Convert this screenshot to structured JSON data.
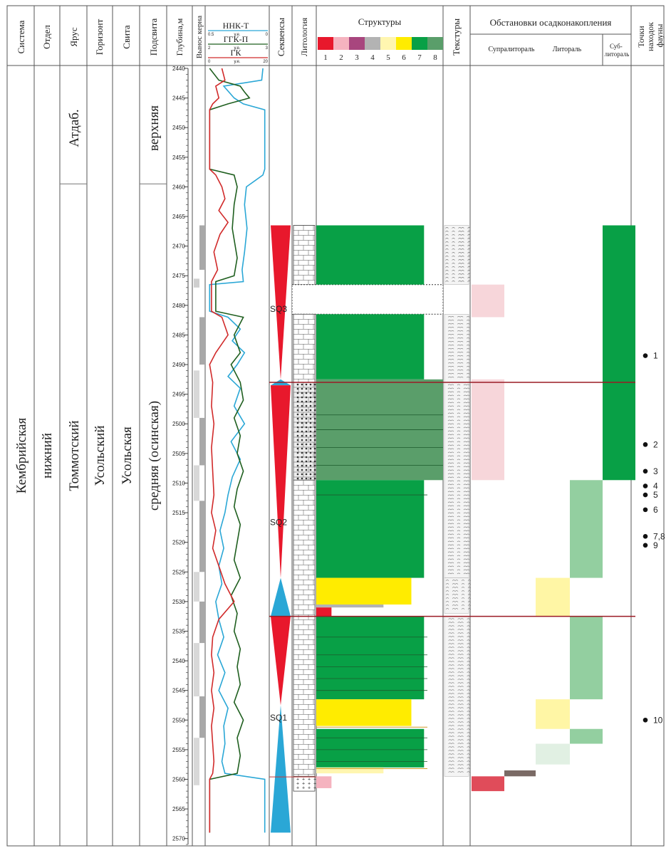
{
  "headers": {
    "system": "Система",
    "division": "Отдел",
    "stage": "Ярус",
    "horizon": "Горизонт",
    "formation": "Свита",
    "subformation": "Подсвита",
    "depth": "Глубина,м",
    "core": "Вынос керна",
    "sequences": "Секвенсы",
    "lithology": "Литология",
    "structures": "Структуры",
    "textures": "Текстуры",
    "environments": "Обстановки осадконакопления",
    "fauna": "Точки находок фауны"
  },
  "env_subheaders": {
    "supralittoral": "Супралитораль",
    "littoral": "Литораль",
    "sublittoral": "Суб-литораль"
  },
  "log_legend": [
    {
      "name": "ННК-Т",
      "color": "#2aa7d6",
      "min": "0.5",
      "unit": "у.е.",
      "max": "0"
    },
    {
      "name": "ГГК-П",
      "color": "#1f5f1f",
      "min": "2",
      "unit": "у.е.",
      "max": "3"
    },
    {
      "name": "ГК",
      "color": "#d12a2a",
      "min": "0",
      "unit": "у.е.",
      "max": "20"
    }
  ],
  "strat": {
    "system": "Кембрийская",
    "division": "нижний",
    "stage_upper": "Атдаб.",
    "stage_lower": "Томмотский",
    "horizon": "Усольский",
    "formation": "Усольская",
    "subformation_upper": "верхняя",
    "subformation_lower": "средняя (осинская)",
    "stage_boundary_depth": 2459.5
  },
  "structure_legend": [
    {
      "n": "1",
      "color": "#e8182c"
    },
    {
      "n": "2",
      "color": "#f5b3bf"
    },
    {
      "n": "3",
      "color": "#a8467e"
    },
    {
      "n": "4",
      "color": "#b3b3b3"
    },
    {
      "n": "5",
      "color": "#fff6b0"
    },
    {
      "n": "6",
      "color": "#ffec00"
    },
    {
      "n": "7",
      "color": "#08a046"
    },
    {
      "n": "8",
      "color": "#5a9e6a"
    }
  ],
  "chart_data": {
    "type": "well-log-section",
    "depth_range": [
      2440,
      2571
    ],
    "depth_ticks": [
      2440,
      2445,
      2450,
      2455,
      2460,
      2465,
      2470,
      2475,
      2480,
      2485,
      2490,
      2495,
      2500,
      2505,
      2510,
      2515,
      2520,
      2525,
      2530,
      2535,
      2540,
      2545,
      2550,
      2555,
      2560,
      2565,
      2570
    ],
    "curves": [
      {
        "name": "ННК-Т",
        "color": "#2aa7d6",
        "points": [
          [
            2440,
            0.92
          ],
          [
            2442,
            0.9
          ],
          [
            2443,
            0.28
          ],
          [
            2445,
            0.45
          ],
          [
            2446,
            0.6
          ],
          [
            2447,
            0.95
          ],
          [
            2457,
            0.95
          ],
          [
            2458,
            0.92
          ],
          [
            2460,
            0.65
          ],
          [
            2463,
            0.62
          ],
          [
            2467,
            0.66
          ],
          [
            2471,
            0.62
          ],
          [
            2474,
            0.58
          ],
          [
            2476,
            0.6
          ],
          [
            2476.5,
            0.05
          ],
          [
            2481,
            0.05
          ],
          [
            2482,
            0.35
          ],
          [
            2484,
            0.55
          ],
          [
            2486,
            0.42
          ],
          [
            2488,
            0.62
          ],
          [
            2490,
            0.5
          ],
          [
            2492,
            0.35
          ],
          [
            2494,
            0.55
          ],
          [
            2497,
            0.45
          ],
          [
            2500,
            0.62
          ],
          [
            2503,
            0.4
          ],
          [
            2506,
            0.55
          ],
          [
            2509,
            0.42
          ],
          [
            2512,
            0.35
          ],
          [
            2515,
            0.3
          ],
          [
            2518,
            0.22
          ],
          [
            2521,
            0.28
          ],
          [
            2524,
            0.2
          ],
          [
            2527,
            0.25
          ],
          [
            2530,
            0.15
          ],
          [
            2533,
            0.2
          ],
          [
            2536,
            0.28
          ],
          [
            2539,
            0.18
          ],
          [
            2542,
            0.3
          ],
          [
            2545,
            0.2
          ],
          [
            2548,
            0.35
          ],
          [
            2551,
            0.28
          ],
          [
            2554,
            0.3
          ],
          [
            2557,
            0.25
          ],
          [
            2559,
            0.3
          ],
          [
            2560,
            0.95
          ],
          [
            2569,
            0.95
          ]
        ]
      },
      {
        "name": "ГГК-П",
        "color": "#1f5f1f",
        "points": [
          [
            2440,
            0.05
          ],
          [
            2442,
            0.2
          ],
          [
            2443,
            0.55
          ],
          [
            2444,
            0.62
          ],
          [
            2445,
            0.7
          ],
          [
            2446,
            0.35
          ],
          [
            2447,
            0.05
          ],
          [
            2457,
            0.05
          ],
          [
            2458,
            0.45
          ],
          [
            2460,
            0.5
          ],
          [
            2463,
            0.45
          ],
          [
            2467,
            0.42
          ],
          [
            2472,
            0.5
          ],
          [
            2475,
            0.45
          ],
          [
            2476,
            0.15
          ],
          [
            2481,
            0.15
          ],
          [
            2482,
            0.6
          ],
          [
            2485,
            0.45
          ],
          [
            2488,
            0.55
          ],
          [
            2490,
            0.4
          ],
          [
            2493,
            0.55
          ],
          [
            2496,
            0.6
          ],
          [
            2499,
            0.45
          ],
          [
            2502,
            0.55
          ],
          [
            2505,
            0.5
          ],
          [
            2508,
            0.6
          ],
          [
            2511,
            0.5
          ],
          [
            2514,
            0.45
          ],
          [
            2517,
            0.55
          ],
          [
            2520,
            0.5
          ],
          [
            2523,
            0.45
          ],
          [
            2526,
            0.55
          ],
          [
            2529,
            0.4
          ],
          [
            2532,
            0.5
          ],
          [
            2535,
            0.45
          ],
          [
            2538,
            0.55
          ],
          [
            2541,
            0.5
          ],
          [
            2544,
            0.55
          ],
          [
            2547,
            0.45
          ],
          [
            2550,
            0.6
          ],
          [
            2553,
            0.5
          ],
          [
            2556,
            0.55
          ],
          [
            2559,
            0.5
          ],
          [
            2560,
            0.05
          ],
          [
            2569,
            0.05
          ]
        ]
      },
      {
        "name": "ГК",
        "color": "#d12a2a",
        "points": [
          [
            2440,
            0.25
          ],
          [
            2442,
            0.3
          ],
          [
            2443,
            0.15
          ],
          [
            2445,
            0.2
          ],
          [
            2446,
            0.1
          ],
          [
            2447,
            0.05
          ],
          [
            2457,
            0.05
          ],
          [
            2458,
            0.15
          ],
          [
            2460,
            0.25
          ],
          [
            2462,
            0.3
          ],
          [
            2464,
            0.2
          ],
          [
            2466,
            0.35
          ],
          [
            2468,
            0.22
          ],
          [
            2471,
            0.12
          ],
          [
            2474,
            0.18
          ],
          [
            2476,
            0.08
          ],
          [
            2481,
            0.08
          ],
          [
            2482,
            0.25
          ],
          [
            2485,
            0.35
          ],
          [
            2488,
            0.15
          ],
          [
            2490,
            0.05
          ],
          [
            2493,
            0.1
          ],
          [
            2497,
            0.08
          ],
          [
            2500,
            0.12
          ],
          [
            2504,
            0.08
          ],
          [
            2508,
            0.1
          ],
          [
            2512,
            0.12
          ],
          [
            2515,
            0.08
          ],
          [
            2518,
            0.15
          ],
          [
            2521,
            0.1
          ],
          [
            2524,
            0.2
          ],
          [
            2527,
            0.3
          ],
          [
            2530,
            0.45
          ],
          [
            2533,
            0.2
          ],
          [
            2536,
            0.1
          ],
          [
            2539,
            0.08
          ],
          [
            2542,
            0.12
          ],
          [
            2545,
            0.08
          ],
          [
            2548,
            0.12
          ],
          [
            2551,
            0.08
          ],
          [
            2554,
            0.1
          ],
          [
            2557,
            0.12
          ],
          [
            2559,
            0.1
          ],
          [
            2560,
            0.05
          ],
          [
            2569,
            0.05
          ]
        ]
      }
    ],
    "core_recovery": [
      {
        "from": 2466.5,
        "to": 2474,
        "color": "#a8a8a8",
        "pos": "right"
      },
      {
        "from": 2475.5,
        "to": 2477,
        "color": "#cfcfcf",
        "pos": "left"
      },
      {
        "from": 2482,
        "to": 2490,
        "color": "#a8a8a8",
        "pos": "right"
      },
      {
        "from": 2491,
        "to": 2499,
        "color": "#d8d8d8",
        "pos": "left"
      },
      {
        "from": 2499,
        "to": 2507,
        "color": "#a8a8a8",
        "pos": "right"
      },
      {
        "from": 2507,
        "to": 2513,
        "color": "#d8d8d8",
        "pos": "left"
      },
      {
        "from": 2513,
        "to": 2525,
        "color": "#a8a8a8",
        "pos": "right"
      },
      {
        "from": 2525,
        "to": 2530,
        "color": "#d8d8d8",
        "pos": "left"
      },
      {
        "from": 2530,
        "to": 2537,
        "color": "#a8a8a8",
        "pos": "right"
      },
      {
        "from": 2537,
        "to": 2546,
        "color": "#d8d8d8",
        "pos": "left"
      },
      {
        "from": 2546,
        "to": 2553,
        "color": "#a8a8a8",
        "pos": "right"
      },
      {
        "from": 2553,
        "to": 2561,
        "color": "#d8d8d8",
        "pos": "left"
      }
    ],
    "sequences": [
      {
        "label": "SQ3",
        "triangles": [
          {
            "from": 2466.5,
            "to": 2492.5,
            "color": "#e8182c",
            "dir": "down"
          },
          {
            "from": 2492.5,
            "to": 2493.5,
            "color": "#2aa7d6",
            "dir": "up"
          }
        ]
      },
      {
        "label": "SQ2",
        "triangles": [
          {
            "from": 2493.5,
            "to": 2526,
            "color": "#e8182c",
            "dir": "down"
          },
          {
            "from": 2526,
            "to": 2532.5,
            "color": "#2aa7d6",
            "dir": "up"
          }
        ]
      },
      {
        "label": "SQ1",
        "triangles": [
          {
            "from": 2532.5,
            "to": 2547.5,
            "color": "#e8182c",
            "dir": "down"
          },
          {
            "from": 2547.5,
            "to": 2569,
            "color": "#2aa7d6",
            "dir": "up"
          }
        ]
      }
    ],
    "sequence_label_depths": [
      2480.5,
      2516.5,
      2549.5
    ],
    "lithology": [
      {
        "from": 2466.5,
        "to": 2476.5,
        "type": "limestone"
      },
      {
        "from": 2476.5,
        "to": 2481.5,
        "type": "gap"
      },
      {
        "from": 2481.5,
        "to": 2493,
        "type": "limestone"
      },
      {
        "from": 2493,
        "to": 2509.5,
        "type": "breccia"
      },
      {
        "from": 2509.5,
        "to": 2559.5,
        "type": "limestone"
      },
      {
        "from": 2559.5,
        "to": 2562,
        "type": "salt"
      }
    ],
    "structures": [
      {
        "from": 2466.5,
        "to": 2476.5,
        "code": 7,
        "width": 0.85
      },
      {
        "from": 2476.5,
        "to": 2481.5,
        "code": 0,
        "width": 1.0
      },
      {
        "from": 2481.5,
        "to": 2492.5,
        "code": 7,
        "width": 0.85
      },
      {
        "from": 2492.5,
        "to": 2509.5,
        "code": 8,
        "width": 1.0
      },
      {
        "from": 2509.5,
        "to": 2526,
        "code": 7,
        "width": 0.85
      },
      {
        "from": 2526,
        "to": 2530.5,
        "code": 6,
        "width": 0.75
      },
      {
        "from": 2530.5,
        "to": 2531,
        "code": 4,
        "width": 0.53
      },
      {
        "from": 2531,
        "to": 2532.5,
        "code": 1,
        "width": 0.12
      },
      {
        "from": 2532.5,
        "to": 2546.5,
        "code": 7,
        "width": 0.85
      },
      {
        "from": 2546.5,
        "to": 2551,
        "code": 6,
        "width": 0.75
      },
      {
        "from": 2551.5,
        "to": 2558,
        "code": 7,
        "width": 0.85
      },
      {
        "from": 2558,
        "to": 2559,
        "code": 5,
        "width": 0.53
      },
      {
        "from": 2559.5,
        "to": 2561.5,
        "code": 2,
        "width": 0.12
      }
    ],
    "texture_intervals": [
      [
        2466.5,
        2476.5
      ],
      [
        2481.5,
        2493
      ],
      [
        2493,
        2526
      ],
      [
        2526,
        2532
      ],
      [
        2532.5,
        2559.5
      ]
    ],
    "environments": [
      {
        "zone": "supralittoral",
        "from": 2476.5,
        "to": 2482,
        "color": "#f7d6da"
      },
      {
        "zone": "supralittoral",
        "from": 2492.5,
        "to": 2509.5,
        "color": "#f7d6da"
      },
      {
        "zone": "supralittoral",
        "from": 2559.5,
        "to": 2562,
        "color": "#e04c5a"
      },
      {
        "zone": "supra-littoral",
        "from": 2558.5,
        "to": 2559.5,
        "color": "#7a6a65"
      },
      {
        "zone": "littoral-lower",
        "from": 2509.5,
        "to": 2526,
        "color": "#93cfa0"
      },
      {
        "zone": "littoral-upper",
        "from": 2526,
        "to": 2532.5,
        "color": "#fff6a5"
      },
      {
        "zone": "littoral-lower",
        "from": 2532.5,
        "to": 2546.5,
        "color": "#93cfa0"
      },
      {
        "zone": "littoral-upper",
        "from": 2546.5,
        "to": 2551.5,
        "color": "#fff6a5"
      },
      {
        "zone": "littoral-lower",
        "from": 2551.5,
        "to": 2554,
        "color": "#93cfa0"
      },
      {
        "zone": "littoral-upper",
        "from": 2554,
        "to": 2557.5,
        "color": "#e1f0e3"
      },
      {
        "zone": "sublittoral",
        "from": 2466.5,
        "to": 2509.5,
        "color": "#08a046"
      }
    ],
    "sequence_boundaries": [
      {
        "depth": 2493,
        "color": "#9a1a24"
      },
      {
        "depth": 2532.5,
        "color": "#9a1a24"
      }
    ],
    "fauna_points": [
      {
        "label": "1",
        "depth": 2488.5
      },
      {
        "label": "2",
        "depth": 2503.5
      },
      {
        "label": "3",
        "depth": 2508
      },
      {
        "label": "4",
        "depth": 2510.5
      },
      {
        "label": "5",
        "depth": 2512
      },
      {
        "label": "6",
        "depth": 2514.5
      },
      {
        "label": "7,8",
        "depth": 2519
      },
      {
        "label": "9",
        "depth": 2520.5
      },
      {
        "label": "10",
        "depth": 2550
      }
    ]
  }
}
